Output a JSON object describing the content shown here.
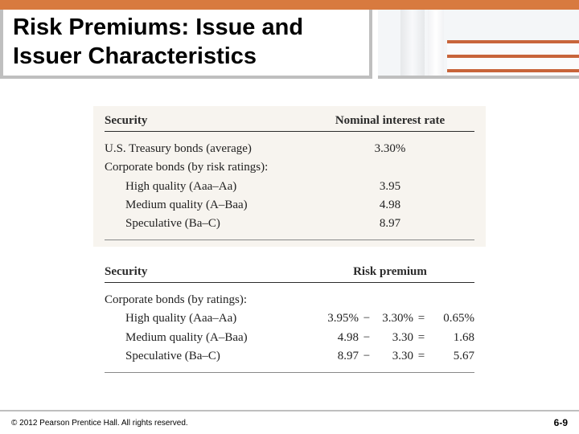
{
  "title": "Risk Premiums: Issue and Issuer Characteristics",
  "accent_color": "#d87a3f",
  "border_color": "#bfbfbf",
  "table1": {
    "bg": "#f7f4ef",
    "headers": {
      "left": "Security",
      "right": "Nominal interest rate"
    },
    "rows": [
      {
        "label": "U.S. Treasury bonds (average)",
        "indent": false,
        "value": "3.30%"
      },
      {
        "label": "Corporate bonds (by risk ratings):",
        "indent": false,
        "value": ""
      },
      {
        "label": "High quality (Aaa–Aa)",
        "indent": true,
        "value": "3.95"
      },
      {
        "label": "Medium quality (A–Baa)",
        "indent": true,
        "value": "4.98"
      },
      {
        "label": "Speculative (Ba–C)",
        "indent": true,
        "value": "8.97"
      }
    ]
  },
  "table2": {
    "headers": {
      "left": "Security",
      "right": "Risk premium"
    },
    "rows": [
      {
        "label": "Corporate bonds (by ratings):",
        "indent": false
      },
      {
        "label": "High quality (Aaa–Aa)",
        "indent": true,
        "a": "3.95%",
        "op": "−",
        "b": "3.30%",
        "eq": "=",
        "r": "0.65%"
      },
      {
        "label": "Medium quality (A–Baa)",
        "indent": true,
        "a": "4.98",
        "op": "−",
        "b": "3.30",
        "eq": "=",
        "r": "1.68"
      },
      {
        "label": "Speculative (Ba–C)",
        "indent": true,
        "a": "8.97",
        "op": "−",
        "b": "3.30",
        "eq": "=",
        "r": "5.67"
      }
    ]
  },
  "footer": {
    "copyright": "© 2012 Pearson Prentice Hall. All rights reserved.",
    "page": "6-9"
  }
}
